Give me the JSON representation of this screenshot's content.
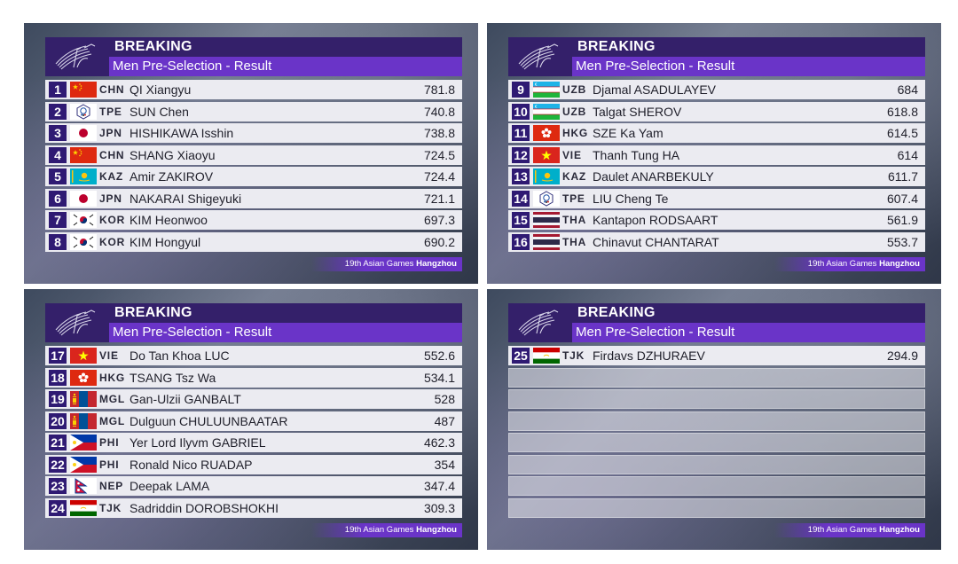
{
  "header": {
    "breaking": "BREAKING",
    "subtitle": "Men Pre-Selection - Result",
    "footer_event": "19th Asian Games",
    "footer_city": "Hangzhou"
  },
  "panels": [
    {
      "rows": [
        {
          "rank": "1",
          "flag": "china-flag",
          "noc": "CHN",
          "name": "QI Xiangyu",
          "score": "781.8"
        },
        {
          "rank": "2",
          "flag": "chinese-taipei-flag",
          "noc": "TPE",
          "name": "SUN Chen",
          "score": "740.8"
        },
        {
          "rank": "3",
          "flag": "japan-flag",
          "noc": "JPN",
          "name": "HISHIKAWA Isshin",
          "score": "738.8"
        },
        {
          "rank": "4",
          "flag": "china-flag",
          "noc": "CHN",
          "name": "SHANG Xiaoyu",
          "score": "724.5"
        },
        {
          "rank": "5",
          "flag": "kazakhstan-flag",
          "noc": "KAZ",
          "name": "Amir ZAKIROV",
          "score": "724.4"
        },
        {
          "rank": "6",
          "flag": "japan-flag",
          "noc": "JPN",
          "name": "NAKARAI Shigeyuki",
          "score": "721.1"
        },
        {
          "rank": "7",
          "flag": "korea-flag",
          "noc": "KOR",
          "name": "KIM Heonwoo",
          "score": "697.3"
        },
        {
          "rank": "8",
          "flag": "korea-flag",
          "noc": "KOR",
          "name": "KIM Hongyul",
          "score": "690.2"
        }
      ]
    },
    {
      "rows": [
        {
          "rank": "9",
          "flag": "uzbekistan-flag",
          "noc": "UZB",
          "name": "Djamal ASADULAYEV",
          "score": "684"
        },
        {
          "rank": "10",
          "flag": "uzbekistan-flag",
          "noc": "UZB",
          "name": "Talgat SHEROV",
          "score": "618.8"
        },
        {
          "rank": "11",
          "flag": "hong-kong-flag",
          "noc": "HKG",
          "name": "SZE Ka Yam",
          "score": "614.5"
        },
        {
          "rank": "12",
          "flag": "vietnam-flag",
          "noc": "VIE",
          "name": "Thanh Tung HA",
          "score": "614"
        },
        {
          "rank": "13",
          "flag": "kazakhstan-flag",
          "noc": "KAZ",
          "name": "Daulet ANARBEKULY",
          "score": "611.7"
        },
        {
          "rank": "14",
          "flag": "chinese-taipei-flag",
          "noc": "TPE",
          "name": "LIU Cheng Te",
          "score": "607.4"
        },
        {
          "rank": "15",
          "flag": "thailand-flag",
          "noc": "THA",
          "name": "Kantapon RODSAART",
          "score": "561.9"
        },
        {
          "rank": "16",
          "flag": "thailand-flag",
          "noc": "THA",
          "name": "Chinavut CHANTARAT",
          "score": "553.7"
        }
      ]
    },
    {
      "rows": [
        {
          "rank": "17",
          "flag": "vietnam-flag",
          "noc": "VIE",
          "name": "Do Tan Khoa LUC",
          "score": "552.6"
        },
        {
          "rank": "18",
          "flag": "hong-kong-flag",
          "noc": "HKG",
          "name": "TSANG Tsz Wa",
          "score": "534.1"
        },
        {
          "rank": "19",
          "flag": "mongolia-flag",
          "noc": "MGL",
          "name": "Gan-Ulzii GANBALT",
          "score": "528"
        },
        {
          "rank": "20",
          "flag": "mongolia-flag",
          "noc": "MGL",
          "name": "Dulguun CHULUUNBAATAR",
          "score": "487"
        },
        {
          "rank": "21",
          "flag": "philippines-flag",
          "noc": "PHI",
          "name": "Yer Lord Ilyvm GABRIEL",
          "score": "462.3"
        },
        {
          "rank": "22",
          "flag": "philippines-flag",
          "noc": "PHI",
          "name": "Ronald Nico RUADAP",
          "score": "354"
        },
        {
          "rank": "23",
          "flag": "nepal-flag",
          "noc": "NEP",
          "name": "Deepak LAMA",
          "score": "347.4"
        },
        {
          "rank": "24",
          "flag": "tajikistan-flag",
          "noc": "TJK",
          "name": "Sadriddin DOROBSHOKHI",
          "score": "309.3"
        }
      ]
    },
    {
      "rows": [
        {
          "rank": "25",
          "flag": "tajikistan-flag",
          "noc": "TJK",
          "name": "Firdavs DZHURAEV",
          "score": "294.9"
        }
      ]
    }
  ]
}
